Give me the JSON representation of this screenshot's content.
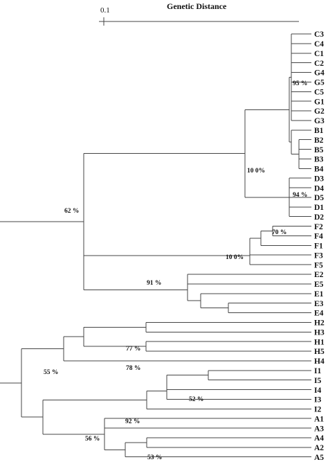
{
  "header": {
    "title": "Genetic Distance",
    "scale_label": "0.1"
  },
  "leaves": [
    "C3",
    "C4",
    "C1",
    "C2",
    "G4",
    "G5",
    "C5",
    "G1",
    "G2",
    "G3",
    "B1",
    "B2",
    "B5",
    "B3",
    "B4",
    "D3",
    "D4",
    "D5",
    "D1",
    "D2",
    "F2",
    "F4",
    "F1",
    "F3",
    "F5",
    "E2",
    "E5",
    "E1",
    "E3",
    "E4",
    "H2",
    "H3",
    "H1",
    "H5",
    "H4",
    "I1",
    "I5",
    "I4",
    "I3",
    "I2",
    "A1",
    "A3",
    "A4",
    "A2",
    "A5"
  ],
  "bootstrap": {
    "cg": "95 %",
    "bcdg": "10 0%",
    "d": "94 %",
    "f_top": "70 %",
    "f": "10 0%",
    "e": "91 %",
    "upper": "62 %",
    "h23": "77 %",
    "h15": "78 %",
    "h": "55 %",
    "i15": "52 %",
    "i": "92 %",
    "a": "56 %",
    "a25": "53 %"
  }
}
